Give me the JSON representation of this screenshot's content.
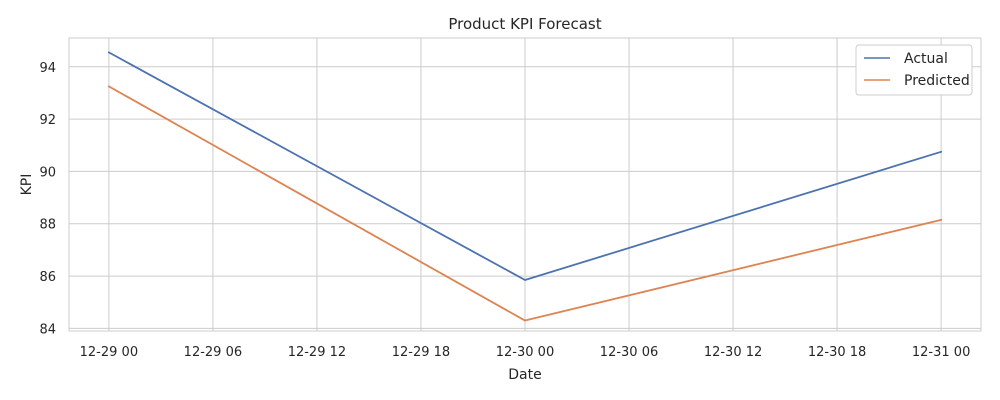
{
  "chart_data": {
    "type": "line",
    "title": "Product KPI Forecast",
    "xlabel": "Date",
    "ylabel": "KPI",
    "x": [
      "12-29 00",
      "12-30 00",
      "12-31 00"
    ],
    "x_hours": [
      0,
      24,
      48
    ],
    "xlim_hours": [
      -2.3,
      50.3
    ],
    "ylim": [
      83.9,
      95.1
    ],
    "x_ticks": [
      "12-29 00",
      "12-29 06",
      "12-29 12",
      "12-29 18",
      "12-30 00",
      "12-30 06",
      "12-30 12",
      "12-30 18",
      "12-31 00"
    ],
    "x_ticks_hours": [
      0,
      6,
      12,
      18,
      24,
      30,
      36,
      42,
      48
    ],
    "y_ticks": [
      84,
      86,
      88,
      90,
      92,
      94
    ],
    "grid": true,
    "legend_position": "top-right",
    "series": [
      {
        "name": "Actual",
        "values": [
          94.55,
          85.85,
          90.75
        ],
        "color": "#4c72b0"
      },
      {
        "name": "Predicted",
        "values": [
          93.25,
          84.3,
          88.15
        ],
        "color": "#dd8452"
      }
    ]
  }
}
